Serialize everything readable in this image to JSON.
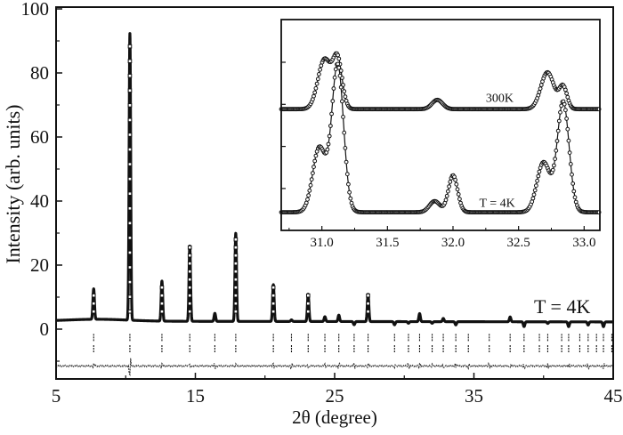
{
  "chart_data": [
    {
      "id": "main",
      "type": "line",
      "title": "",
      "xlabel": "2θ (degree)",
      "ylabel": "Intensity (arb. units)",
      "xlim": [
        5,
        45
      ],
      "ylim": [
        -15.5,
        100
      ],
      "xticks": [
        5,
        15,
        25,
        35,
        45
      ],
      "yticks": [
        0,
        20,
        40,
        60,
        80,
        100
      ],
      "annotation": "T = 4K",
      "background_level": 2.5,
      "peaks": [
        {
          "x": 7.7,
          "y": 12
        },
        {
          "x": 10.3,
          "y": 92
        },
        {
          "x": 12.6,
          "y": 15
        },
        {
          "x": 14.6,
          "y": 26
        },
        {
          "x": 16.4,
          "y": 5
        },
        {
          "x": 17.9,
          "y": 30
        },
        {
          "x": 20.6,
          "y": 14
        },
        {
          "x": 21.9,
          "y": 3
        },
        {
          "x": 23.1,
          "y": 11
        },
        {
          "x": 24.3,
          "y": 4
        },
        {
          "x": 25.3,
          "y": 4.5
        },
        {
          "x": 26.4,
          "y": 1.5
        },
        {
          "x": 27.4,
          "y": 11
        },
        {
          "x": 29.3,
          "y": 1.5
        },
        {
          "x": 30.3,
          "y": 2
        },
        {
          "x": 31.1,
          "y": 5
        },
        {
          "x": 32.0,
          "y": 2
        },
        {
          "x": 32.8,
          "y": 3.5
        },
        {
          "x": 33.7,
          "y": 1.5
        },
        {
          "x": 34.6,
          "y": 2.5
        },
        {
          "x": 36.1,
          "y": 2.5
        },
        {
          "x": 37.6,
          "y": 4
        },
        {
          "x": 38.6,
          "y": 1
        },
        {
          "x": 40.3,
          "y": 2
        },
        {
          "x": 41.8,
          "y": 1
        },
        {
          "x": 43.2,
          "y": 1.5
        },
        {
          "x": 44.3,
          "y": 1
        }
      ],
      "bragg_rows": [
        {
          "y_top": -1.5,
          "y_bottom": -4,
          "positions": [
            7.7,
            10.3,
            12.6,
            14.6,
            16.4,
            17.9,
            20.6,
            21.9,
            23.1,
            24.3,
            25.3,
            26.4,
            27.4,
            29.3,
            30.3,
            31.1,
            32.0,
            32.8,
            33.7,
            34.6,
            36.1,
            37.6,
            38.6,
            39.7,
            40.3,
            41.3,
            41.8,
            42.6,
            43.2,
            43.8,
            44.3,
            44.9
          ]
        },
        {
          "y_top": -5,
          "y_bottom": -7.5,
          "positions": [
            7.7,
            10.3,
            12.6,
            14.6,
            16.4,
            17.9,
            20.6,
            21.9,
            23.1,
            24.3,
            25.3,
            26.4,
            27.4,
            29.3,
            30.3,
            31.1,
            32.0,
            32.8,
            33.7,
            34.6,
            36.1,
            37.6,
            38.6,
            39.7,
            40.3,
            41.3,
            41.8,
            42.6,
            43.2,
            43.8,
            44.3,
            44.9
          ]
        }
      ],
      "difference_curve_level": -11.5
    },
    {
      "id": "inset",
      "type": "line",
      "title": "",
      "xlabel": "",
      "ylabel": "",
      "xlim": [
        30.69,
        33.12
      ],
      "xticks": [
        31.0,
        31.5,
        32.0,
        32.5,
        33.0
      ],
      "ytick_count": 4,
      "series": [
        {
          "name": "300K",
          "baseline": 0.62,
          "peaks": [
            {
              "x": 31.02,
              "height": 0.27,
              "width": 0.05
            },
            {
              "x": 31.12,
              "height": 0.26,
              "width": 0.035
            },
            {
              "x": 31.88,
              "height": 0.05,
              "width": 0.04
            },
            {
              "x": 32.72,
              "height": 0.2,
              "width": 0.05
            },
            {
              "x": 32.84,
              "height": 0.12,
              "width": 0.03
            }
          ]
        },
        {
          "name": "T = 4K",
          "baseline": 0.06,
          "peaks": [
            {
              "x": 30.98,
              "height": 0.35,
              "width": 0.05
            },
            {
              "x": 31.12,
              "height": 0.8,
              "width": 0.045
            },
            {
              "x": 31.86,
              "height": 0.06,
              "width": 0.04
            },
            {
              "x": 32.0,
              "height": 0.2,
              "width": 0.035
            },
            {
              "x": 32.69,
              "height": 0.27,
              "width": 0.05
            },
            {
              "x": 32.84,
              "height": 0.6,
              "width": 0.045
            }
          ]
        }
      ],
      "labels": [
        {
          "text": "300K",
          "x": 32.25,
          "y": 0.66
        },
        {
          "text": "T = 4K",
          "x": 32.2,
          "y": 0.09
        }
      ]
    }
  ]
}
